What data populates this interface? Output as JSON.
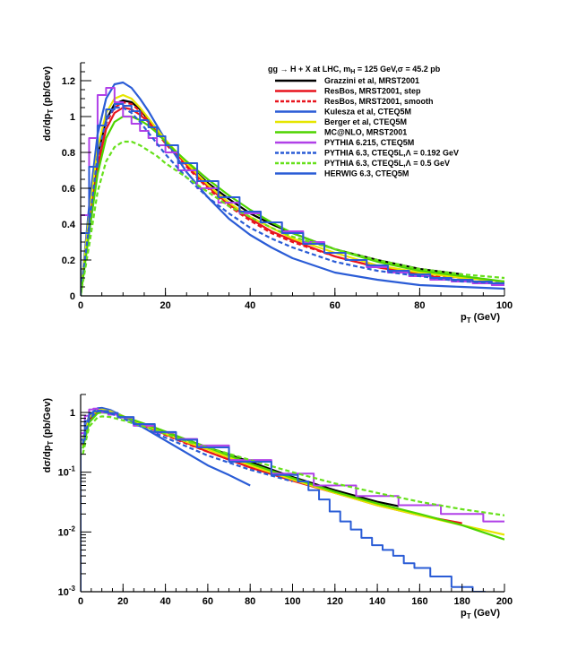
{
  "chart_data": [
    {
      "type": "line",
      "title": "gg → H + X at LHC, m_H = 125 GeV, σ = 45.2 pb",
      "xlabel": "p_T (GeV)",
      "ylabel": "dσ/dp_T (pb/Gev)",
      "xlim": [
        0,
        100
      ],
      "ylim": [
        0,
        1.3
      ],
      "yscale": "linear",
      "x_ticks": [
        0,
        20,
        40,
        60,
        80,
        100
      ],
      "x_tick_labels": [
        "0",
        "20",
        "40",
        "60",
        "80",
        "100"
      ],
      "y_ticks": [
        0,
        0.2,
        0.4,
        0.6,
        0.8,
        1.0,
        1.2
      ],
      "y_tick_labels": [
        "0",
        "0.2",
        "0.4",
        "0.6",
        "0.8",
        "1",
        "1.2"
      ],
      "legend_position": "top-right",
      "series": [
        {
          "name": "Grazzini et al, MRST2001",
          "color": "#000000",
          "style": "solid",
          "x": [
            0,
            2,
            4,
            6,
            8,
            10,
            12,
            14,
            16,
            18,
            20,
            25,
            30,
            35,
            40,
            45,
            50,
            60,
            70,
            80,
            90
          ],
          "values": [
            0,
            0.42,
            0.78,
            0.98,
            1.07,
            1.09,
            1.08,
            1.04,
            0.98,
            0.92,
            0.86,
            0.74,
            0.63,
            0.54,
            0.46,
            0.4,
            0.35,
            0.26,
            0.2,
            0.15,
            0.12
          ]
        },
        {
          "name": "ResBos, MRST2001, step",
          "color": "#e8141e",
          "style": "solid",
          "x": [
            0,
            2,
            4,
            6,
            8,
            10,
            12,
            14,
            16,
            18,
            20,
            25,
            30,
            35,
            40,
            45,
            50,
            60,
            70,
            80,
            90
          ],
          "values": [
            0,
            0.38,
            0.72,
            0.93,
            1.02,
            1.05,
            1.04,
            1.01,
            0.97,
            0.92,
            0.86,
            0.73,
            0.61,
            0.51,
            0.43,
            0.36,
            0.31,
            0.22,
            0.16,
            0.12,
            0.08
          ]
        },
        {
          "name": "ResBos, MRST2001, smooth",
          "color": "#e8141e",
          "style": "dashed",
          "x": [
            0,
            2,
            4,
            6,
            8,
            10,
            12,
            14,
            16,
            18,
            20,
            25,
            30,
            35,
            40,
            45,
            50,
            60,
            70,
            80,
            90,
            100
          ],
          "values": [
            0,
            0.4,
            0.76,
            0.96,
            1.05,
            1.08,
            1.07,
            1.03,
            0.97,
            0.91,
            0.85,
            0.72,
            0.6,
            0.5,
            0.42,
            0.35,
            0.3,
            0.22,
            0.16,
            0.12,
            0.1,
            0.08
          ]
        },
        {
          "name": "Kulesza et al, CTEQ5M",
          "color": "#2a5cd6",
          "style": "solid",
          "x": [
            0,
            2,
            4,
            6,
            8,
            10,
            12,
            14,
            16,
            18,
            20,
            25,
            30,
            35,
            40,
            45,
            50,
            60,
            70,
            80,
            90,
            100
          ],
          "values": [
            0,
            0.5,
            0.9,
            1.1,
            1.18,
            1.19,
            1.16,
            1.1,
            1.03,
            0.95,
            0.87,
            0.69,
            0.55,
            0.43,
            0.34,
            0.27,
            0.21,
            0.13,
            0.09,
            0.06,
            0.05,
            0.04
          ]
        },
        {
          "name": "Berger et al, CTEQ5M",
          "color": "#e6e600",
          "style": "solid",
          "x": [
            0,
            2,
            4,
            6,
            8,
            10,
            12,
            14,
            16,
            18,
            20,
            25,
            30,
            35,
            40,
            45,
            50,
            60,
            70,
            80,
            90,
            100
          ],
          "values": [
            0,
            0.45,
            0.82,
            1.02,
            1.1,
            1.12,
            1.1,
            1.05,
            0.99,
            0.93,
            0.87,
            0.74,
            0.62,
            0.52,
            0.44,
            0.38,
            0.32,
            0.24,
            0.17,
            0.13,
            0.1,
            0.08
          ]
        },
        {
          "name": "MC@NLO, MRST2001",
          "color": "#4ed400",
          "style": "solid",
          "x": [
            0,
            2,
            4,
            6,
            8,
            10,
            12,
            14,
            16,
            18,
            20,
            25,
            30,
            35,
            40,
            45,
            50,
            60,
            70,
            80,
            90,
            100
          ],
          "values": [
            0,
            0.35,
            0.68,
            0.88,
            0.97,
            1.0,
            1.0,
            0.98,
            0.95,
            0.91,
            0.86,
            0.75,
            0.65,
            0.56,
            0.48,
            0.41,
            0.35,
            0.26,
            0.19,
            0.14,
            0.11,
            0.08
          ]
        },
        {
          "name": "PYTHIA 6.215, CTEQ5M",
          "color": "#b040e8",
          "style": "histogram",
          "x": [
            1,
            3,
            5,
            7,
            9,
            11,
            13,
            15,
            17,
            19,
            21,
            25,
            30,
            35,
            40,
            45,
            50,
            55,
            60,
            65,
            70,
            75,
            80,
            85,
            90,
            95,
            99
          ],
          "values": [
            0.45,
            0.88,
            1.12,
            1.16,
            1.08,
            1.0,
            0.96,
            0.92,
            0.88,
            0.84,
            0.8,
            0.7,
            0.6,
            0.52,
            0.46,
            0.41,
            0.36,
            0.3,
            0.24,
            0.2,
            0.16,
            0.13,
            0.11,
            0.09,
            0.08,
            0.07,
            0.06
          ]
        },
        {
          "name": "PYTHIA 6.3, CTEQ5L,Λ = 0.192 GeV",
          "color": "#2a5cd6",
          "style": "dashed",
          "x": [
            0,
            2,
            4,
            6,
            8,
            10,
            12,
            14,
            16,
            18,
            20,
            25,
            30,
            35,
            40,
            45,
            50,
            60,
            70,
            80,
            90,
            100
          ],
          "values": [
            0,
            0.4,
            0.78,
            0.98,
            1.05,
            1.05,
            1.02,
            0.97,
            0.91,
            0.85,
            0.79,
            0.66,
            0.55,
            0.46,
            0.38,
            0.32,
            0.27,
            0.19,
            0.14,
            0.11,
            0.08,
            0.07
          ]
        },
        {
          "name": "PYTHIA 6.3, CTEQ5L,Λ = 0.5 GeV",
          "color": "#66e01a",
          "style": "dashed",
          "x": [
            0,
            2,
            4,
            6,
            8,
            10,
            12,
            14,
            16,
            18,
            20,
            25,
            30,
            35,
            40,
            45,
            50,
            60,
            70,
            80,
            90,
            100
          ],
          "values": [
            0,
            0.28,
            0.58,
            0.75,
            0.83,
            0.86,
            0.86,
            0.84,
            0.81,
            0.78,
            0.74,
            0.66,
            0.58,
            0.5,
            0.44,
            0.38,
            0.33,
            0.26,
            0.2,
            0.15,
            0.12,
            0.1
          ]
        },
        {
          "name": "HERWIG 6.3, CTEQ5M",
          "color": "#2a5cd6",
          "style": "histogram",
          "x": [
            1,
            3,
            5,
            7,
            9,
            11,
            13,
            15,
            17,
            19,
            21,
            25,
            30,
            35,
            40,
            45,
            50,
            55,
            60,
            65,
            70,
            75,
            80,
            85,
            90,
            95,
            99
          ],
          "values": [
            0.35,
            0.72,
            0.95,
            1.04,
            1.07,
            1.06,
            1.03,
            0.98,
            0.94,
            0.89,
            0.84,
            0.74,
            0.64,
            0.55,
            0.47,
            0.41,
            0.35,
            0.29,
            0.24,
            0.2,
            0.17,
            0.14,
            0.12,
            0.1,
            0.09,
            0.08,
            0.07
          ]
        }
      ]
    },
    {
      "type": "line",
      "title": "",
      "xlabel": "p_T (GeV)",
      "ylabel": "dσ/dp_T (pb/Gev)",
      "xlim": [
        0,
        200
      ],
      "ylim": [
        0.001,
        2
      ],
      "yscale": "log",
      "x_ticks": [
        0,
        20,
        40,
        60,
        80,
        100,
        120,
        140,
        160,
        180,
        200
      ],
      "x_tick_labels": [
        "0",
        "20",
        "40",
        "60",
        "80",
        "100",
        "120",
        "140",
        "160",
        "180",
        "200"
      ],
      "y_ticks": [
        0.001,
        0.01,
        0.1,
        1
      ],
      "y_tick_labels": [
        "10-3",
        "10-2",
        "10-1",
        "1"
      ],
      "series": [
        {
          "name": "Grazzini et al, MRST2001",
          "color": "#000000",
          "style": "solid",
          "x": [
            1,
            4,
            8,
            10,
            14,
            20,
            30,
            40,
            50,
            60,
            80,
            100,
            120,
            140,
            150
          ],
          "values": [
            0.3,
            0.78,
            1.07,
            1.09,
            1.04,
            0.86,
            0.63,
            0.46,
            0.35,
            0.26,
            0.15,
            0.083,
            0.05,
            0.032,
            0.027
          ]
        },
        {
          "name": "ResBos, MRST2001, step",
          "color": "#e8141e",
          "style": "solid",
          "x": [
            1,
            4,
            8,
            10,
            14,
            20,
            30,
            40,
            50,
            60,
            80,
            100,
            120,
            140,
            160,
            180
          ],
          "values": [
            0.28,
            0.72,
            1.02,
            1.05,
            1.01,
            0.86,
            0.61,
            0.43,
            0.31,
            0.22,
            0.12,
            0.072,
            0.045,
            0.028,
            0.019,
            0.014
          ]
        },
        {
          "name": "ResBos, MRST2001, smooth",
          "color": "#e8141e",
          "style": "dashed",
          "x": [
            1,
            4,
            8,
            10,
            14,
            20,
            30,
            40,
            50,
            60,
            80,
            100,
            110
          ],
          "values": [
            0.3,
            0.76,
            1.05,
            1.08,
            1.03,
            0.85,
            0.6,
            0.42,
            0.3,
            0.22,
            0.12,
            0.075,
            0.06
          ]
        },
        {
          "name": "Kulesza et al, CTEQ5M",
          "color": "#2a5cd6",
          "style": "solid",
          "x": [
            1,
            4,
            8,
            10,
            14,
            20,
            30,
            40,
            50,
            60,
            70,
            80
          ],
          "values": [
            0.35,
            0.9,
            1.18,
            1.19,
            1.1,
            0.87,
            0.55,
            0.34,
            0.21,
            0.13,
            0.09,
            0.06
          ]
        },
        {
          "name": "Berger et al, CTEQ5M",
          "color": "#e6e600",
          "style": "solid",
          "x": [
            1,
            4,
            8,
            10,
            14,
            20,
            30,
            40,
            50,
            60,
            80,
            100,
            120,
            140,
            160,
            180,
            200
          ],
          "values": [
            0.32,
            0.82,
            1.1,
            1.12,
            1.05,
            0.87,
            0.62,
            0.44,
            0.32,
            0.24,
            0.13,
            0.075,
            0.045,
            0.028,
            0.019,
            0.013,
            0.009
          ]
        },
        {
          "name": "MC@NLO, MRST2001",
          "color": "#4ed400",
          "style": "solid",
          "x": [
            1,
            4,
            8,
            10,
            14,
            20,
            30,
            40,
            50,
            60,
            80,
            100,
            120,
            140,
            160,
            180,
            200
          ],
          "values": [
            0.25,
            0.68,
            0.97,
            1.0,
            0.98,
            0.86,
            0.65,
            0.48,
            0.35,
            0.26,
            0.14,
            0.08,
            0.047,
            0.03,
            0.02,
            0.013,
            0.0075
          ]
        },
        {
          "name": "PYTHIA 6.215, CTEQ5M",
          "color": "#b040e8",
          "style": "histogram",
          "x": [
            1,
            3,
            5,
            7,
            9,
            11,
            15,
            20,
            30,
            40,
            50,
            60,
            80,
            100,
            120,
            140,
            160,
            180,
            200
          ],
          "values": [
            0.45,
            0.88,
            1.12,
            1.16,
            1.08,
            1.0,
            0.92,
            0.82,
            0.6,
            0.46,
            0.36,
            0.28,
            0.16,
            0.095,
            0.06,
            0.04,
            0.028,
            0.02,
            0.015
          ]
        },
        {
          "name": "PYTHIA 6.3, CTEQ5L,Λ = 0.192 GeV",
          "color": "#2a5cd6",
          "style": "dashed",
          "x": [
            1,
            4,
            8,
            10,
            14,
            20,
            30,
            40,
            50,
            60,
            80,
            100
          ],
          "values": [
            0.3,
            0.78,
            1.05,
            1.05,
            0.97,
            0.79,
            0.55,
            0.38,
            0.27,
            0.19,
            0.11,
            0.07
          ]
        },
        {
          "name": "PYTHIA 6.3, CTEQ5L,Λ = 0.5 GeV",
          "color": "#66e01a",
          "style": "dashed",
          "x": [
            1,
            4,
            8,
            10,
            14,
            20,
            30,
            40,
            50,
            60,
            80,
            100,
            120,
            140,
            160,
            180,
            200
          ],
          "values": [
            0.2,
            0.58,
            0.83,
            0.86,
            0.84,
            0.74,
            0.58,
            0.44,
            0.33,
            0.26,
            0.16,
            0.1,
            0.065,
            0.045,
            0.032,
            0.024,
            0.019
          ]
        },
        {
          "name": "HERWIG 6.3, CTEQ5M",
          "color": "#2a5cd6",
          "style": "histogram",
          "x": [
            1,
            3,
            5,
            7,
            9,
            11,
            15,
            20,
            30,
            40,
            50,
            60,
            80,
            100,
            105,
            110,
            115,
            120,
            125,
            130,
            135,
            140,
            145,
            150,
            155,
            160,
            170,
            180,
            190
          ],
          "values": [
            0.35,
            0.72,
            0.95,
            1.04,
            1.07,
            1.06,
            0.98,
            0.84,
            0.64,
            0.47,
            0.35,
            0.26,
            0.15,
            0.09,
            0.07,
            0.05,
            0.035,
            0.022,
            0.015,
            0.011,
            0.008,
            0.006,
            0.005,
            0.004,
            0.003,
            0.0025,
            0.0018,
            0.0012,
            0.001
          ]
        }
      ]
    }
  ]
}
